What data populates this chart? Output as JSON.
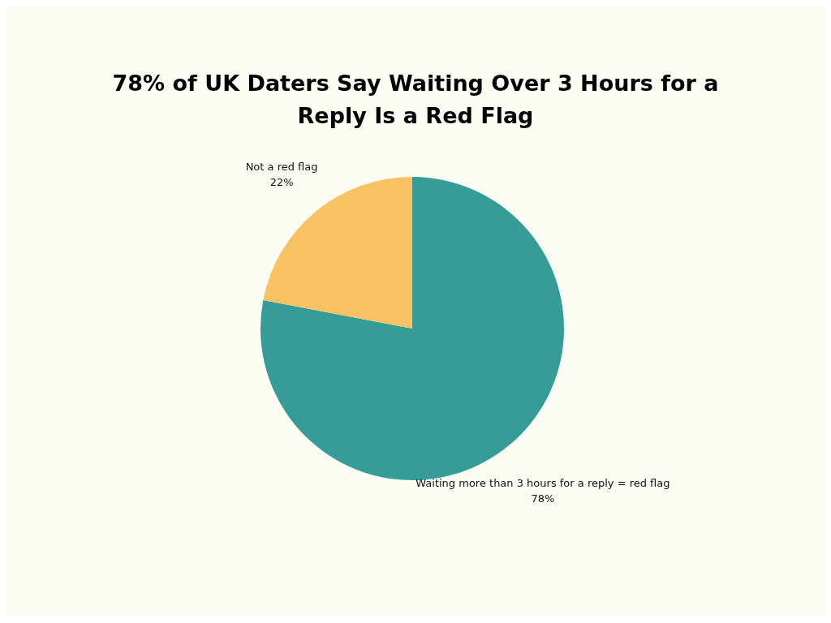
{
  "chart_data": {
    "type": "pie",
    "title": "78% of UK Daters Say Waiting Over 3 Hours for a Reply Is a Red Flag",
    "categories": [
      "Waiting more than 3 hours for a reply = red flag",
      "Not a red flag"
    ],
    "values": [
      78,
      22
    ],
    "colors": [
      "#359c97",
      "#f9c263"
    ],
    "value_labels": [
      "78%",
      "22%"
    ]
  }
}
